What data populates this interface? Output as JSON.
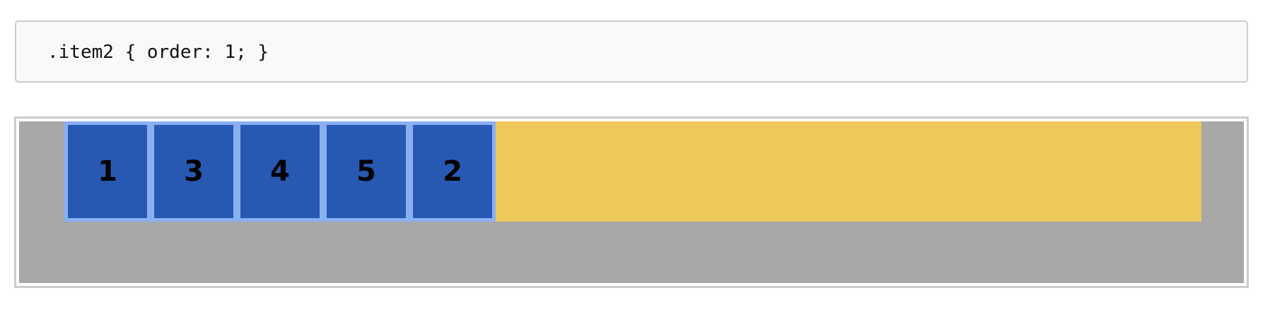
{
  "code": {
    "text": ".item2 { order: 1; }"
  },
  "flex_demo": {
    "items": [
      {
        "label": "1"
      },
      {
        "label": "3"
      },
      {
        "label": "4"
      },
      {
        "label": "5"
      },
      {
        "label": "2"
      }
    ],
    "colors": {
      "outer_background": "#a8a8a8",
      "container_background": "#edc85a",
      "item_background": "#2759b2",
      "item_border": "#8ab0f2"
    }
  }
}
